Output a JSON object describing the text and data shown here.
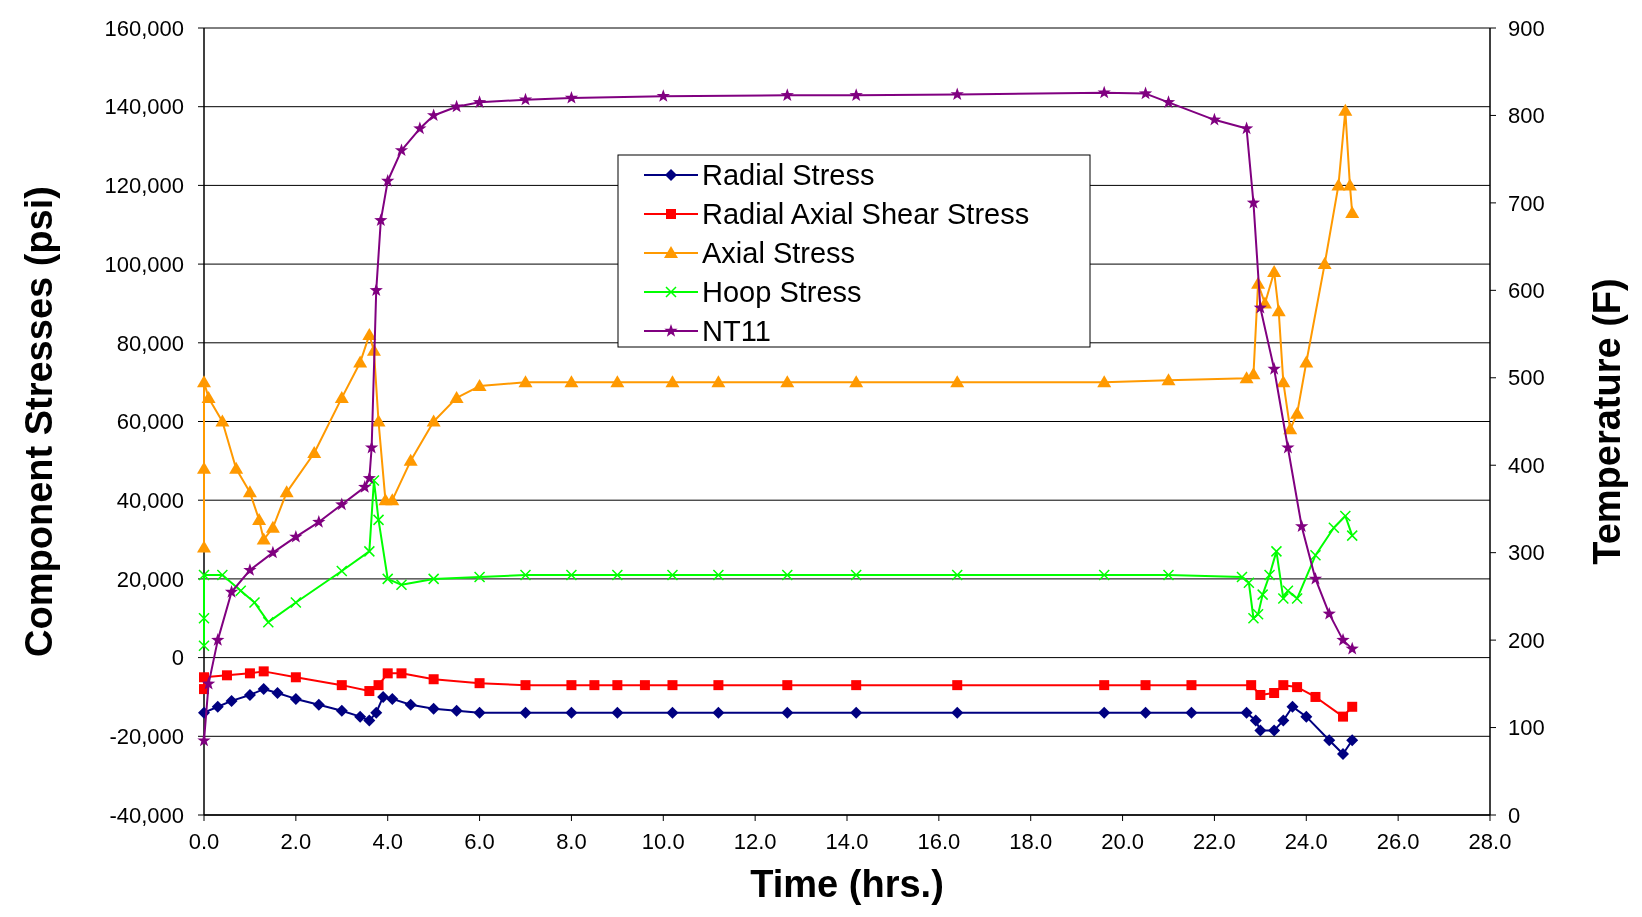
{
  "chart_data": {
    "type": "line",
    "xlabel": "Time (hrs.)",
    "ylabel": "Component Stresses (psi)",
    "y2label": "Temperature (F)",
    "xlim": [
      0,
      28
    ],
    "xticks": [
      {
        "value": 0,
        "label": "0.0"
      },
      {
        "value": 2,
        "label": "2.0"
      },
      {
        "value": 4,
        "label": "4.0"
      },
      {
        "value": 6,
        "label": "6.0"
      },
      {
        "value": 8,
        "label": "8.0"
      },
      {
        "value": 10,
        "label": "10.0"
      },
      {
        "value": 12,
        "label": "12.0"
      },
      {
        "value": 14,
        "label": "14.0"
      },
      {
        "value": 16,
        "label": "16.0"
      },
      {
        "value": 18,
        "label": "18.0"
      },
      {
        "value": 20,
        "label": "20.0"
      },
      {
        "value": 22,
        "label": "22.0"
      },
      {
        "value": 24,
        "label": "24.0"
      },
      {
        "value": 26,
        "label": "26.0"
      },
      {
        "value": 28,
        "label": "28.0"
      }
    ],
    "ylim": [
      -40000,
      160000
    ],
    "yticks": [
      {
        "value": -40000,
        "label": "-40,000"
      },
      {
        "value": -20000,
        "label": "-20,000"
      },
      {
        "value": 0,
        "label": "0"
      },
      {
        "value": 20000,
        "label": "20,000"
      },
      {
        "value": 40000,
        "label": "40,000"
      },
      {
        "value": 60000,
        "label": "60,000"
      },
      {
        "value": 80000,
        "label": "80,000"
      },
      {
        "value": 100000,
        "label": "100,000"
      },
      {
        "value": 120000,
        "label": "120,000"
      },
      {
        "value": 140000,
        "label": "140,000"
      },
      {
        "value": 160000,
        "label": "160,000"
      }
    ],
    "y2lim": [
      0,
      900
    ],
    "y2ticks": [
      0,
      100,
      200,
      300,
      400,
      500,
      600,
      700,
      800,
      900
    ],
    "grid": "y",
    "legend": "top",
    "line_style": "solid",
    "series": [
      {
        "name": "Radial Stress",
        "color": "#000080",
        "marker": "diamond",
        "x": [
          0,
          0.3,
          0.6,
          1.0,
          1.3,
          1.6,
          2.0,
          2.5,
          3.0,
          3.4,
          3.6,
          3.75,
          3.9,
          4.1,
          4.5,
          5.0,
          5.5,
          6,
          7,
          8,
          9,
          10.2,
          11.2,
          12.7,
          14.2,
          16.4,
          19.6,
          20.5,
          21.5,
          22.7,
          22.9,
          23.0,
          23.3,
          23.5,
          23.7,
          24.0,
          24.5,
          24.8,
          25.0
        ],
        "values": [
          -14000,
          -12500,
          -11000,
          -9500,
          -8000,
          -9000,
          -10500,
          -12000,
          -13500,
          -15000,
          -16000,
          -14000,
          -10000,
          -10500,
          -12000,
          -13000,
          -13500,
          -14000,
          -14000,
          -14000,
          -14000,
          -14000,
          -14000,
          -14000,
          -14000,
          -14000,
          -14000,
          -14000,
          -14000,
          -14000,
          -16000,
          -18500,
          -18500,
          -16000,
          -12500,
          -15000,
          -21000,
          -24500,
          -21000
        ]
      },
      {
        "name": "Radial Axial Shear Stress",
        "color": "#ff0000",
        "marker": "square",
        "x": [
          0,
          0,
          0.5,
          1.0,
          1.3,
          2,
          3,
          3.6,
          3.8,
          4.0,
          4.3,
          5,
          6,
          7,
          8,
          8.5,
          9,
          9.6,
          10.2,
          11.2,
          12.7,
          14.2,
          16.4,
          19.6,
          20.5,
          21.5,
          22.8,
          23.0,
          23.3,
          23.5,
          23.8,
          24.2,
          24.8,
          25.0
        ],
        "values": [
          -8000,
          -5000,
          -4500,
          -4000,
          -3500,
          -5000,
          -7000,
          -8500,
          -7000,
          -4000,
          -4000,
          -5500,
          -6500,
          -7000,
          -7000,
          -7000,
          -7000,
          -7000,
          -7000,
          -7000,
          -7000,
          -7000,
          -7000,
          -7000,
          -7000,
          -7000,
          -7000,
          -9500,
          -9000,
          -7000,
          -7500,
          -10000,
          -15000,
          -12500
        ]
      },
      {
        "name": "Axial Stress",
        "color": "#ff9900",
        "marker": "triangle",
        "x": [
          0,
          0,
          0,
          0.1,
          0.4,
          0.7,
          1.0,
          1.2,
          1.3,
          1.5,
          1.8,
          2.4,
          3.0,
          3.4,
          3.6,
          3.7,
          3.8,
          3.95,
          4.1,
          4.5,
          5,
          5.5,
          6,
          7,
          8,
          9,
          10.2,
          11.2,
          12.7,
          14.2,
          16.4,
          19.6,
          21,
          22.7,
          22.85,
          22.95,
          23.1,
          23.3,
          23.4,
          23.5,
          23.65,
          23.8,
          24.0,
          24.4,
          24.7,
          24.85,
          24.95,
          25.0
        ],
        "values": [
          28000,
          48000,
          70000,
          66000,
          60000,
          48000,
          42000,
          35000,
          30000,
          33000,
          42000,
          52000,
          66000,
          75000,
          82000,
          78000,
          60000,
          40000,
          40000,
          50000,
          60000,
          66000,
          69000,
          70000,
          70000,
          70000,
          70000,
          70000,
          70000,
          70000,
          70000,
          70000,
          70500,
          71000,
          72000,
          95000,
          90000,
          98000,
          88000,
          70000,
          58000,
          62000,
          75000,
          100000,
          120000,
          139000,
          120000,
          113000
        ]
      },
      {
        "name": "Hoop Stress",
        "color": "#00ff00",
        "marker": "cross",
        "x": [
          0,
          0,
          0,
          0.4,
          0.8,
          1.1,
          1.4,
          2,
          3,
          3.6,
          3.7,
          3.8,
          4.0,
          4.3,
          5,
          6,
          7,
          8,
          9,
          10.2,
          11.2,
          12.7,
          14.2,
          16.4,
          19.6,
          21,
          22.6,
          22.75,
          22.85,
          22.95,
          23.05,
          23.2,
          23.35,
          23.5,
          23.6,
          23.8,
          24.2,
          24.6,
          24.85,
          25.0
        ],
        "values": [
          3000,
          10000,
          21000,
          21000,
          17000,
          14000,
          9000,
          14000,
          22000,
          27000,
          45000,
          35000,
          20000,
          18500,
          20000,
          20500,
          21000,
          21000,
          21000,
          21000,
          21000,
          21000,
          21000,
          21000,
          21000,
          21000,
          20500,
          19000,
          10000,
          11000,
          16000,
          21000,
          27000,
          15000,
          17000,
          15000,
          26000,
          33000,
          36000,
          31000
        ]
      },
      {
        "name": "NT11",
        "color": "#800080",
        "marker": "star",
        "axis": "y2",
        "x": [
          0,
          0.1,
          0.3,
          0.6,
          1.0,
          1.5,
          2.0,
          2.5,
          3.0,
          3.5,
          3.6,
          3.65,
          3.75,
          3.85,
          4.0,
          4.3,
          4.7,
          5.0,
          5.5,
          6,
          7,
          8,
          10,
          12.7,
          14.2,
          16.4,
          19.6,
          20.5,
          21,
          22,
          22.7,
          22.85,
          23.0,
          23.3,
          23.6,
          23.9,
          24.2,
          24.5,
          24.8,
          25.0
        ],
        "values": [
          85,
          150,
          200,
          255,
          280,
          300,
          318,
          335,
          355,
          375,
          385,
          420,
          600,
          680,
          725,
          760,
          785,
          800,
          810,
          815,
          818,
          820,
          822,
          823,
          823,
          824,
          826,
          825,
          815,
          795,
          785,
          700,
          580,
          510,
          420,
          330,
          270,
          230,
          200,
          190
        ]
      }
    ]
  }
}
